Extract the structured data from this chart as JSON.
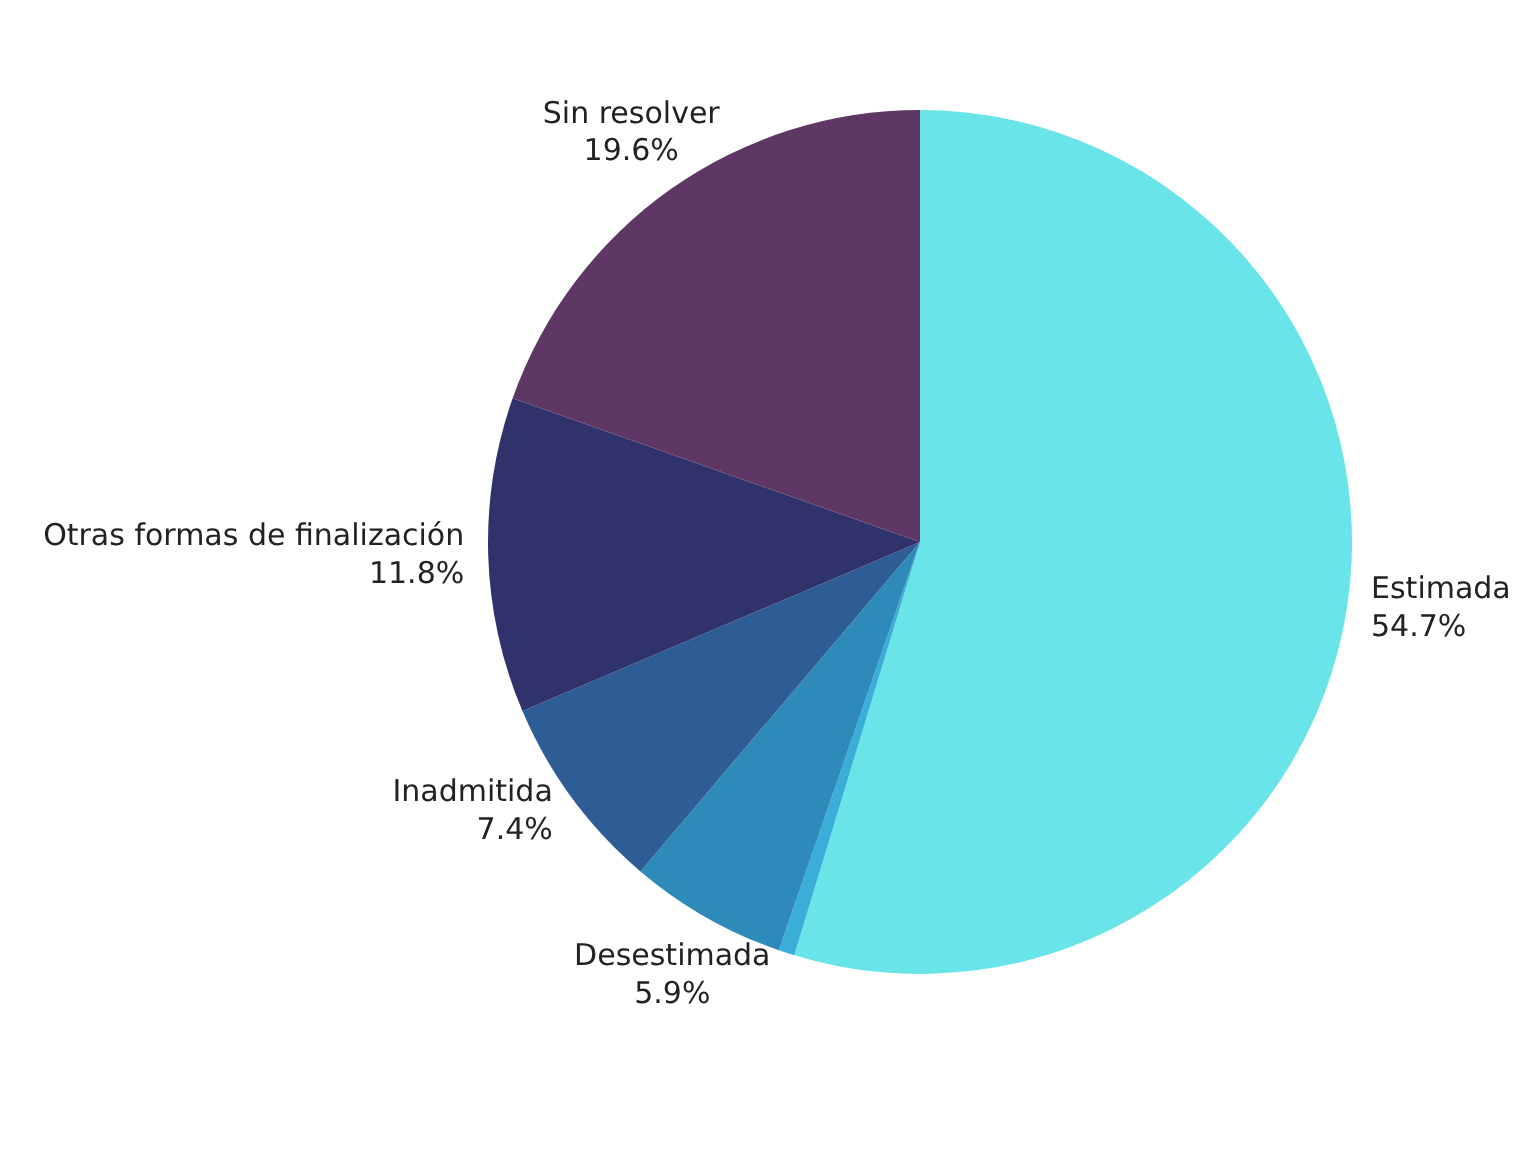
{
  "chart_data": {
    "type": "pie",
    "categories": [
      "Estimada",
      null,
      "Desestimada",
      "Inadmitida",
      "Otras formas de finalización",
      "Sin resolver"
    ],
    "values": [
      54.7,
      0.6,
      5.9,
      7.4,
      11.8,
      19.6
    ],
    "value_labels": [
      "54.7%",
      null,
      "5.9%",
      "7.4%",
      "11.8%",
      "19.6%"
    ],
    "colors": [
      "#69e4e8",
      "#3aaed8",
      "#2e8ab8",
      "#2e5d96",
      "#30336b",
      "#5e3764"
    ]
  }
}
